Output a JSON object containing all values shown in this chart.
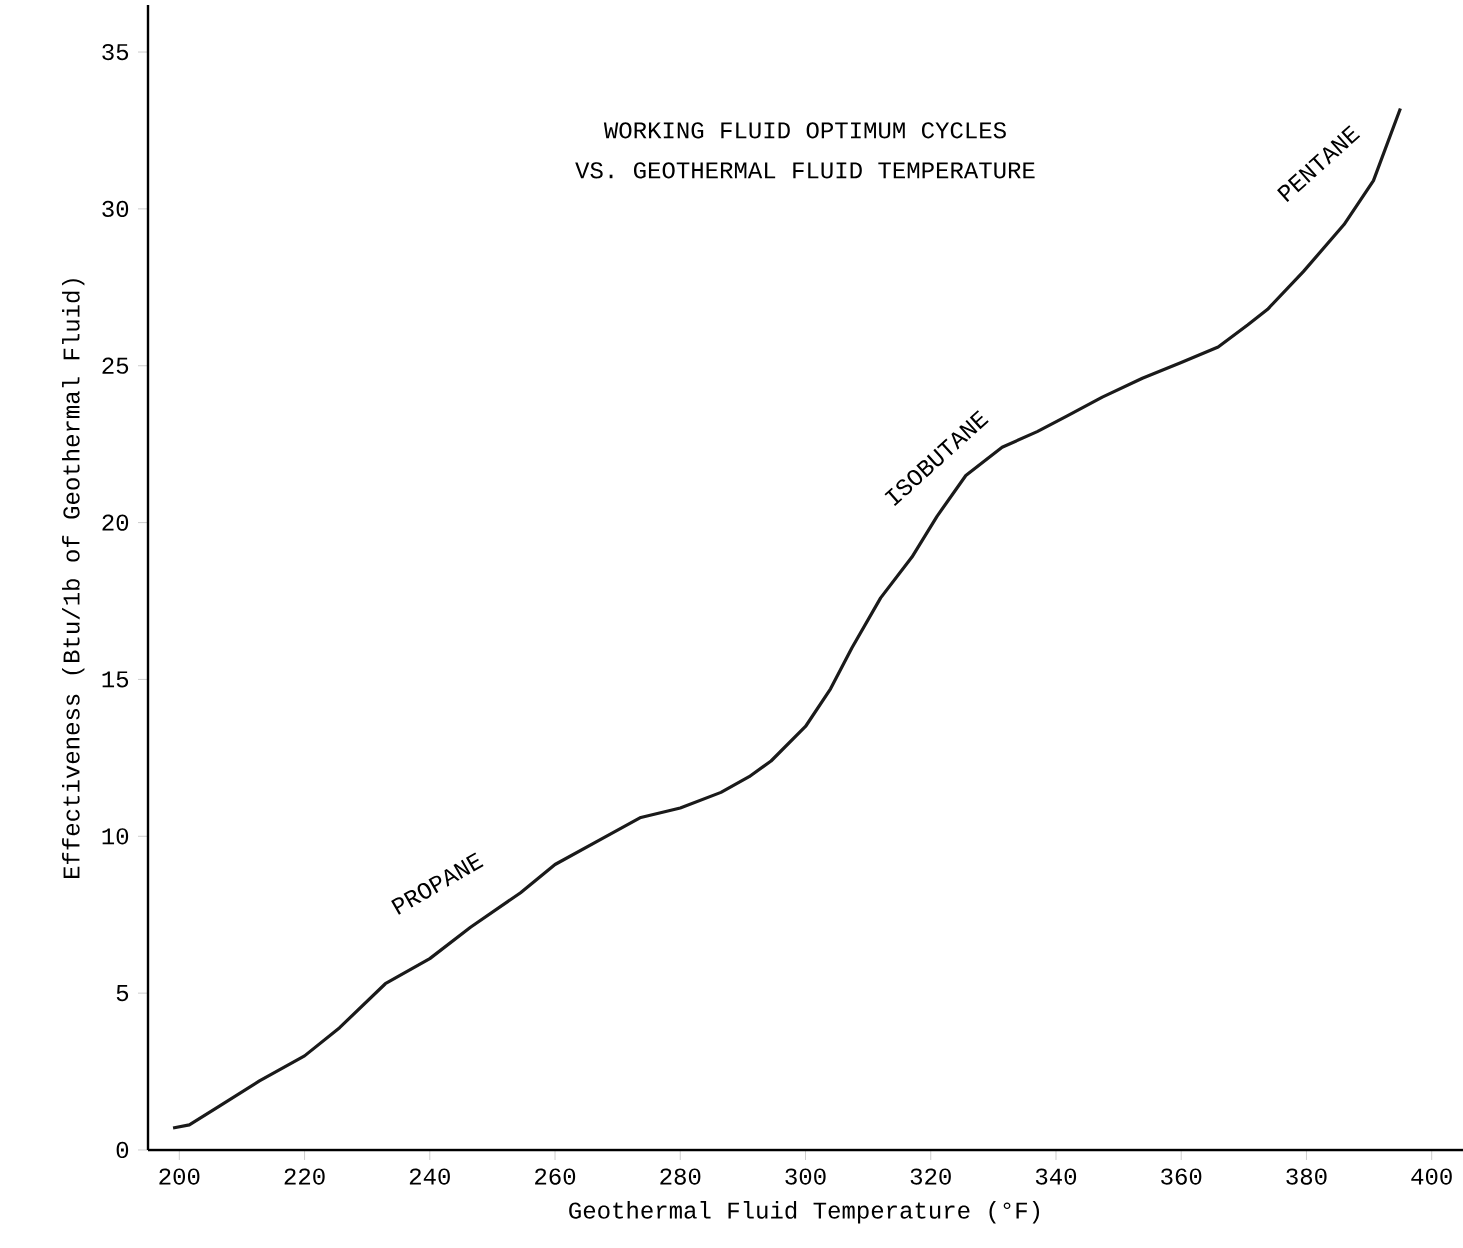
{
  "chart_data": {
    "type": "line",
    "title": "WORKING FLUID OPTIMUM CYCLES",
    "subtitle": "VS. GEOTHERMAL FLUID TEMPERATURE",
    "xlabel": "Geothermal Fluid Temperature (°F)",
    "ylabel": "Effectiveness (Btu/1b of Geothermal Fluid)",
    "x": [
      199,
      201.6,
      206.4,
      212.8,
      220,
      225.6,
      232.9,
      240,
      246.5,
      254.5,
      260,
      267.3,
      273.7,
      280,
      286.5,
      291,
      294.5,
      300,
      304,
      307.4,
      312,
      317,
      321,
      325.6,
      331.4,
      337,
      341.8,
      347.4,
      353.8,
      360,
      365.9,
      370.6,
      373.8,
      379.5,
      386,
      390.7,
      395
    ],
    "series": [
      {
        "color": "#1a1a1a",
        "values": [
          0.7,
          0.8,
          1.4,
          2.2,
          3.0,
          3.9,
          5.3,
          6.1,
          7.1,
          8.2,
          9.1,
          9.9,
          10.6,
          10.9,
          11.4,
          11.9,
          12.4,
          13.5,
          14.7,
          16.0,
          17.6,
          18.9,
          20.2,
          21.5,
          22.4,
          22.9,
          23.4,
          24.0,
          24.6,
          25.1,
          25.6,
          26.3,
          26.8,
          28.0,
          29.5,
          30.9,
          33.2
        ]
      }
    ],
    "annotations": [
      "PROPANE",
      "ISOBUTANE",
      "PENTANE"
    ],
    "xlim": [
      195,
      405
    ],
    "ylim": [
      0,
      36.5
    ],
    "xticks": [
      200,
      220,
      240,
      260,
      280,
      300,
      320,
      340,
      360,
      380,
      400
    ],
    "yticks": [
      0,
      5,
      10,
      15,
      20,
      25,
      30,
      35
    ],
    "grid": false,
    "marker": "none",
    "line_style": "solid"
  }
}
